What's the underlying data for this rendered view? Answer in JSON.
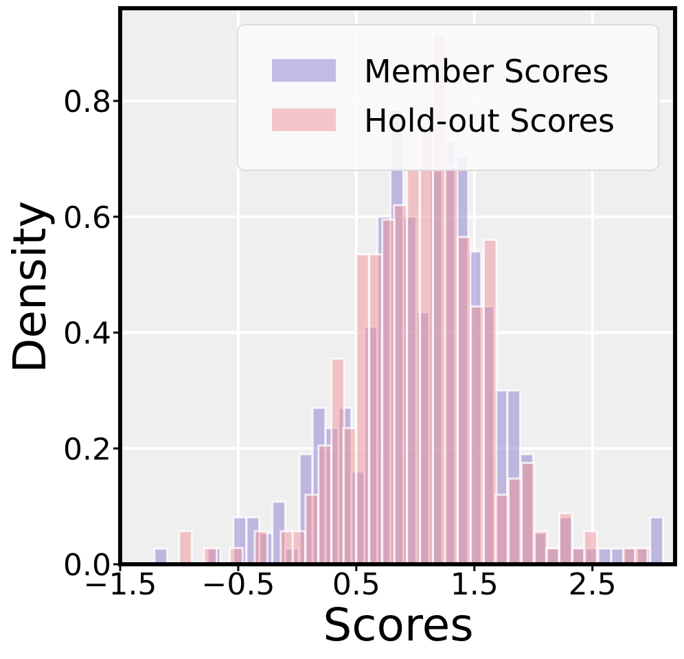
{
  "colors": {
    "member": "#8878cc",
    "holdout": "#ee8f95",
    "background": "#efefef",
    "grid": "#ffffff"
  },
  "chart_data": {
    "type": "bar",
    "title": "",
    "xlabel": "Scores",
    "ylabel": "Density",
    "xlim": [
      -1.5,
      3.2
    ],
    "ylim": [
      0,
      0.96
    ],
    "x_ticks": [
      "−1.5",
      "−0.5",
      "0.5",
      "1.5",
      "2.5"
    ],
    "x_tick_values": [
      -1.5,
      -0.5,
      0.5,
      1.5,
      2.5
    ],
    "y_ticks": [
      "0.0",
      "0.2",
      "0.4",
      "0.6",
      "0.8"
    ],
    "y_tick_values": [
      0.0,
      0.2,
      0.4,
      0.6,
      0.8
    ],
    "grid": true,
    "legend": {
      "position": "top-right",
      "entries": [
        "Member Scores",
        "Hold-out Scores"
      ]
    },
    "series": [
      {
        "name": "Member Scores",
        "bins": [
          {
            "x": -1.21,
            "w": 0.108,
            "y": 0.027
          },
          {
            "x": -0.76,
            "w": 0.108,
            "y": 0.027
          },
          {
            "x": -0.54,
            "w": 0.108,
            "y": 0.081
          },
          {
            "x": -0.43,
            "w": 0.108,
            "y": 0.081
          },
          {
            "x": -0.32,
            "w": 0.108,
            "y": 0.054
          },
          {
            "x": -0.21,
            "w": 0.108,
            "y": 0.108
          },
          {
            "x": -0.1,
            "w": 0.108,
            "y": 0.027
          },
          {
            "x": 0.02,
            "w": 0.108,
            "y": 0.19
          },
          {
            "x": 0.13,
            "w": 0.108,
            "y": 0.27
          },
          {
            "x": 0.24,
            "w": 0.108,
            "y": 0.235
          },
          {
            "x": 0.35,
            "w": 0.108,
            "y": 0.27
          },
          {
            "x": 0.46,
            "w": 0.108,
            "y": 0.16
          },
          {
            "x": 0.57,
            "w": 0.108,
            "y": 0.41
          },
          {
            "x": 0.68,
            "w": 0.108,
            "y": 0.6
          },
          {
            "x": 0.79,
            "w": 0.108,
            "y": 0.785
          },
          {
            "x": 0.9,
            "w": 0.108,
            "y": 0.6
          },
          {
            "x": 1.01,
            "w": 0.108,
            "y": 0.435
          },
          {
            "x": 1.12,
            "w": 0.108,
            "y": 0.68
          },
          {
            "x": 1.23,
            "w": 0.108,
            "y": 0.73
          },
          {
            "x": 1.34,
            "w": 0.108,
            "y": 0.705
          },
          {
            "x": 1.45,
            "w": 0.108,
            "y": 0.54
          },
          {
            "x": 1.56,
            "w": 0.108,
            "y": 0.445
          },
          {
            "x": 1.67,
            "w": 0.108,
            "y": 0.3
          },
          {
            "x": 1.78,
            "w": 0.108,
            "y": 0.3
          },
          {
            "x": 1.89,
            "w": 0.108,
            "y": 0.19
          },
          {
            "x": 2.0,
            "w": 0.108,
            "y": 0.054
          },
          {
            "x": 2.11,
            "w": 0.108,
            "y": 0.027
          },
          {
            "x": 2.22,
            "w": 0.108,
            "y": 0.081
          },
          {
            "x": 2.33,
            "w": 0.108,
            "y": 0.027
          },
          {
            "x": 2.44,
            "w": 0.108,
            "y": 0.027
          },
          {
            "x": 2.55,
            "w": 0.108,
            "y": 0.027
          },
          {
            "x": 2.66,
            "w": 0.108,
            "y": 0.027
          },
          {
            "x": 2.77,
            "w": 0.108,
            "y": 0.027
          },
          {
            "x": 2.88,
            "w": 0.108,
            "y": 0.027
          },
          {
            "x": 2.99,
            "w": 0.108,
            "y": 0.081
          }
        ]
      },
      {
        "name": "Hold-out Scores",
        "bins": [
          {
            "x": -1.0,
            "w": 0.107,
            "y": 0.057
          },
          {
            "x": -0.79,
            "w": 0.107,
            "y": 0.028
          },
          {
            "x": -0.57,
            "w": 0.107,
            "y": 0.028
          },
          {
            "x": -0.36,
            "w": 0.107,
            "y": 0.057
          },
          {
            "x": -0.14,
            "w": 0.107,
            "y": 0.057
          },
          {
            "x": -0.04,
            "w": 0.107,
            "y": 0.057
          },
          {
            "x": 0.07,
            "w": 0.107,
            "y": 0.12
          },
          {
            "x": 0.18,
            "w": 0.107,
            "y": 0.205
          },
          {
            "x": 0.29,
            "w": 0.107,
            "y": 0.355
          },
          {
            "x": 0.39,
            "w": 0.107,
            "y": 0.235
          },
          {
            "x": 0.5,
            "w": 0.107,
            "y": 0.535
          },
          {
            "x": 0.61,
            "w": 0.107,
            "y": 0.535
          },
          {
            "x": 0.72,
            "w": 0.107,
            "y": 0.595
          },
          {
            "x": 0.82,
            "w": 0.107,
            "y": 0.62
          },
          {
            "x": 0.93,
            "w": 0.107,
            "y": 0.685
          },
          {
            "x": 1.04,
            "w": 0.107,
            "y": 0.755
          },
          {
            "x": 1.15,
            "w": 0.107,
            "y": 0.915
          },
          {
            "x": 1.25,
            "w": 0.107,
            "y": 0.685
          },
          {
            "x": 1.36,
            "w": 0.107,
            "y": 0.565
          },
          {
            "x": 1.47,
            "w": 0.107,
            "y": 0.445
          },
          {
            "x": 1.58,
            "w": 0.107,
            "y": 0.56
          },
          {
            "x": 1.68,
            "w": 0.107,
            "y": 0.12
          },
          {
            "x": 1.79,
            "w": 0.107,
            "y": 0.148
          },
          {
            "x": 1.9,
            "w": 0.107,
            "y": 0.175
          },
          {
            "x": 2.01,
            "w": 0.107,
            "y": 0.057
          },
          {
            "x": 2.11,
            "w": 0.107,
            "y": 0.028
          },
          {
            "x": 2.22,
            "w": 0.107,
            "y": 0.088
          },
          {
            "x": 2.33,
            "w": 0.107,
            "y": 0.028
          },
          {
            "x": 2.43,
            "w": 0.107,
            "y": 0.057
          },
          {
            "x": 2.76,
            "w": 0.107,
            "y": 0.028
          },
          {
            "x": 2.86,
            "w": 0.107,
            "y": 0.028
          }
        ]
      }
    ]
  }
}
